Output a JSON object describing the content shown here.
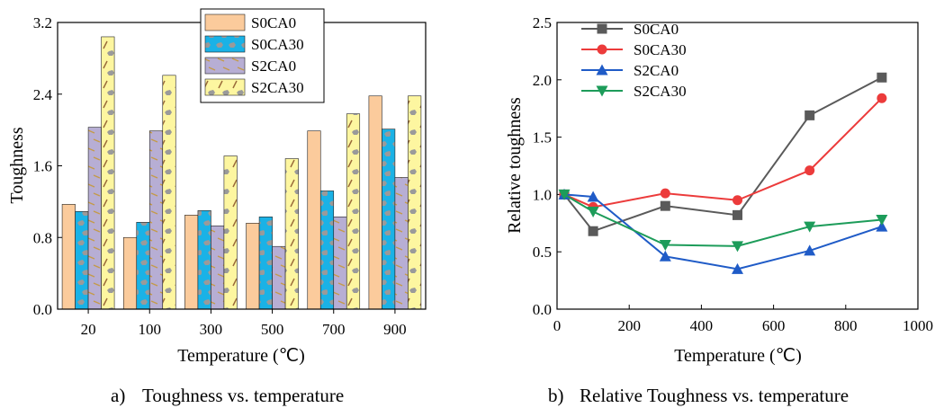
{
  "captions": {
    "a_letter": "a)",
    "a_text": "Toughness vs. temperature",
    "b_letter": "b)",
    "b_text": "Relative Toughness vs. temperature"
  },
  "chart_data": [
    {
      "type": "bar",
      "panel": "a",
      "xlabel": "Temperature (℃)",
      "ylabel": "Toughness",
      "categories": [
        "20",
        "100",
        "300",
        "500",
        "700",
        "900"
      ],
      "ylim": [
        0.0,
        3.2
      ],
      "yticks": [
        "0.0",
        "0.8",
        "1.6",
        "2.4",
        "3.2"
      ],
      "legend_position": "top-right",
      "series": [
        {
          "name": "S0CA0",
          "color": "#fbcb9c",
          "pattern": "none",
          "values": [
            1.17,
            0.8,
            1.05,
            0.96,
            1.99,
            2.38
          ]
        },
        {
          "name": "S0CA30",
          "color": "#1ab2e6",
          "pattern": "dots",
          "values": [
            1.09,
            0.97,
            1.1,
            1.03,
            1.32,
            2.01
          ]
        },
        {
          "name": "S2CA0",
          "color": "#b7aed4",
          "pattern": "dashes",
          "values": [
            2.03,
            1.99,
            0.93,
            0.7,
            1.03,
            1.47
          ]
        },
        {
          "name": "S2CA30",
          "color": "#fdf6a0",
          "pattern": "slashes-dots",
          "values": [
            3.04,
            2.61,
            1.71,
            1.68,
            2.18,
            2.38
          ]
        }
      ]
    },
    {
      "type": "line",
      "panel": "b",
      "xlabel": "Temperature (℃)",
      "ylabel": "Relative  toughness",
      "x": [
        20,
        100,
        300,
        500,
        700,
        900
      ],
      "xlim": [
        0,
        1000
      ],
      "ylim": [
        0.0,
        2.5
      ],
      "xticks": [
        "0",
        "200",
        "400",
        "600",
        "800",
        "1000"
      ],
      "yticks": [
        "0.0",
        "0.5",
        "1.0",
        "1.5",
        "2.0",
        "2.5"
      ],
      "legend_position": "top-left",
      "series": [
        {
          "name": "S0CA0",
          "color": "#5a5a5a",
          "marker": "square",
          "values": [
            1.0,
            0.68,
            0.9,
            0.82,
            1.69,
            2.02
          ]
        },
        {
          "name": "S0CA30",
          "color": "#ec3b3b",
          "marker": "circle",
          "values": [
            1.0,
            0.89,
            1.01,
            0.95,
            1.21,
            1.84
          ]
        },
        {
          "name": "S2CA0",
          "color": "#1f5bc7",
          "marker": "triangle-up",
          "values": [
            1.0,
            0.98,
            0.46,
            0.35,
            0.51,
            0.72
          ]
        },
        {
          "name": "S2CA30",
          "color": "#1d9c5a",
          "marker": "triangle-down",
          "values": [
            1.0,
            0.85,
            0.56,
            0.55,
            0.72,
            0.78
          ]
        }
      ]
    }
  ]
}
